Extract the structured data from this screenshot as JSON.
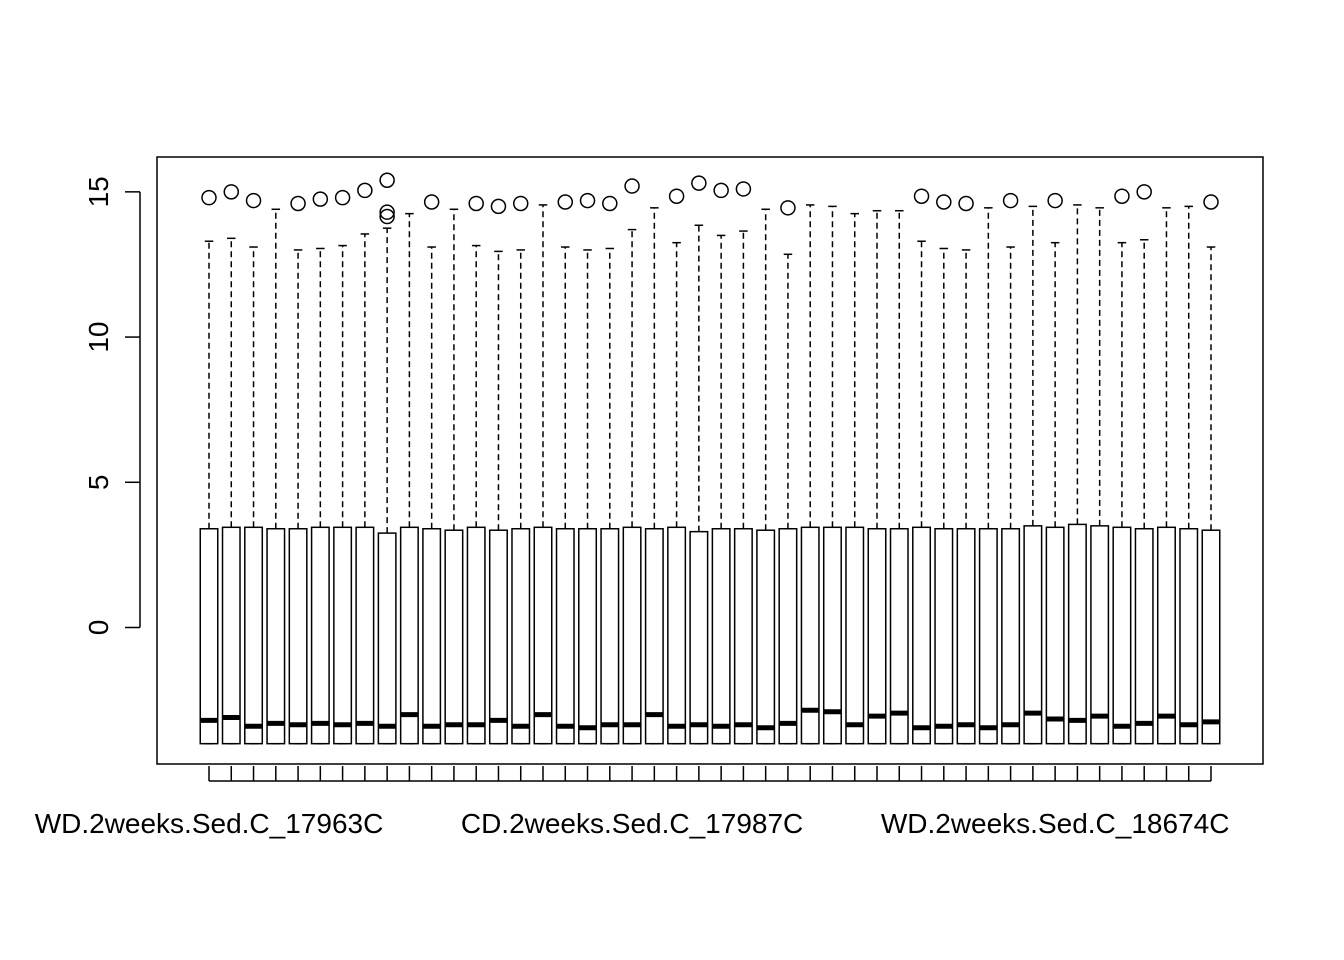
{
  "chart_data": {
    "type": "boxplot",
    "title": "",
    "xlabel": "",
    "ylabel": "",
    "ylim": [
      -4.7,
      16.2
    ],
    "y_ticks": [
      0,
      5,
      10,
      15
    ],
    "y_tick_labels": [
      "0",
      "5",
      "10",
      "15"
    ],
    "grid": false,
    "legend": "none",
    "whisker_style": "dashed",
    "x_tick_labels": [
      {
        "index": 0,
        "label": "WD.2weeks.Sed.C_17963C"
      },
      {
        "index": 19,
        "label": "CD.2weeks.Sed.C_17987C"
      },
      {
        "index": 38,
        "label": "WD.2weeks.Sed.C_18674C"
      }
    ],
    "boxes": [
      {
        "lower_whisker": -4.0,
        "q1": -4.0,
        "median": -3.2,
        "q3": 3.4,
        "upper_whisker": 13.3,
        "outliers": [
          14.8
        ]
      },
      {
        "lower_whisker": -4.0,
        "q1": -4.0,
        "median": -3.1,
        "q3": 3.45,
        "upper_whisker": 13.4,
        "outliers": [
          15.0
        ]
      },
      {
        "lower_whisker": -4.0,
        "q1": -4.0,
        "median": -3.4,
        "q3": 3.45,
        "upper_whisker": 13.1,
        "outliers": [
          14.7
        ]
      },
      {
        "lower_whisker": -4.0,
        "q1": -4.0,
        "median": -3.3,
        "q3": 3.4,
        "upper_whisker": 14.4,
        "outliers": []
      },
      {
        "lower_whisker": -4.0,
        "q1": -4.0,
        "median": -3.35,
        "q3": 3.4,
        "upper_whisker": 13.0,
        "outliers": [
          14.6
        ]
      },
      {
        "lower_whisker": -4.0,
        "q1": -4.0,
        "median": -3.3,
        "q3": 3.45,
        "upper_whisker": 13.05,
        "outliers": [
          14.75
        ]
      },
      {
        "lower_whisker": -4.0,
        "q1": -4.0,
        "median": -3.35,
        "q3": 3.45,
        "upper_whisker": 13.15,
        "outliers": [
          14.8
        ]
      },
      {
        "lower_whisker": -4.0,
        "q1": -4.0,
        "median": -3.3,
        "q3": 3.45,
        "upper_whisker": 13.55,
        "outliers": [
          15.05
        ]
      },
      {
        "lower_whisker": -4.0,
        "q1": -4.0,
        "median": -3.4,
        "q3": 3.25,
        "upper_whisker": 13.75,
        "outliers": [
          15.4,
          14.3,
          14.15
        ]
      },
      {
        "lower_whisker": -4.0,
        "q1": -4.0,
        "median": -3.0,
        "q3": 3.45,
        "upper_whisker": 14.25,
        "outliers": []
      },
      {
        "lower_whisker": -4.0,
        "q1": -4.0,
        "median": -3.4,
        "q3": 3.4,
        "upper_whisker": 13.1,
        "outliers": [
          14.65
        ]
      },
      {
        "lower_whisker": -4.0,
        "q1": -4.0,
        "median": -3.35,
        "q3": 3.35,
        "upper_whisker": 14.4,
        "outliers": []
      },
      {
        "lower_whisker": -4.0,
        "q1": -4.0,
        "median": -3.35,
        "q3": 3.45,
        "upper_whisker": 13.15,
        "outliers": [
          14.6
        ]
      },
      {
        "lower_whisker": -4.0,
        "q1": -4.0,
        "median": -3.2,
        "q3": 3.35,
        "upper_whisker": 12.95,
        "outliers": [
          14.5
        ]
      },
      {
        "lower_whisker": -4.0,
        "q1": -4.0,
        "median": -3.4,
        "q3": 3.4,
        "upper_whisker": 13.0,
        "outliers": [
          14.6
        ]
      },
      {
        "lower_whisker": -4.0,
        "q1": -4.0,
        "median": -3.0,
        "q3": 3.45,
        "upper_whisker": 14.55,
        "outliers": []
      },
      {
        "lower_whisker": -4.0,
        "q1": -4.0,
        "median": -3.4,
        "q3": 3.4,
        "upper_whisker": 13.1,
        "outliers": [
          14.65
        ]
      },
      {
        "lower_whisker": -4.0,
        "q1": -4.0,
        "median": -3.45,
        "q3": 3.4,
        "upper_whisker": 13.0,
        "outliers": [
          14.7
        ]
      },
      {
        "lower_whisker": -4.0,
        "q1": -4.0,
        "median": -3.35,
        "q3": 3.4,
        "upper_whisker": 13.05,
        "outliers": [
          14.6
        ]
      },
      {
        "lower_whisker": -4.0,
        "q1": -4.0,
        "median": -3.35,
        "q3": 3.45,
        "upper_whisker": 13.7,
        "outliers": [
          15.2
        ]
      },
      {
        "lower_whisker": -4.0,
        "q1": -4.0,
        "median": -3.0,
        "q3": 3.4,
        "upper_whisker": 14.45,
        "outliers": []
      },
      {
        "lower_whisker": -4.0,
        "q1": -4.0,
        "median": -3.4,
        "q3": 3.45,
        "upper_whisker": 13.25,
        "outliers": [
          14.85
        ]
      },
      {
        "lower_whisker": -4.0,
        "q1": -4.0,
        "median": -3.35,
        "q3": 3.3,
        "upper_whisker": 13.85,
        "outliers": [
          15.3
        ]
      },
      {
        "lower_whisker": -4.0,
        "q1": -4.0,
        "median": -3.4,
        "q3": 3.4,
        "upper_whisker": 13.5,
        "outliers": [
          15.05
        ]
      },
      {
        "lower_whisker": -4.0,
        "q1": -4.0,
        "median": -3.35,
        "q3": 3.4,
        "upper_whisker": 13.65,
        "outliers": [
          15.1
        ]
      },
      {
        "lower_whisker": -4.0,
        "q1": -4.0,
        "median": -3.45,
        "q3": 3.35,
        "upper_whisker": 14.4,
        "outliers": []
      },
      {
        "lower_whisker": -4.0,
        "q1": -4.0,
        "median": -3.3,
        "q3": 3.4,
        "upper_whisker": 12.85,
        "outliers": [
          14.45
        ]
      },
      {
        "lower_whisker": -4.0,
        "q1": -4.0,
        "median": -2.85,
        "q3": 3.45,
        "upper_whisker": 14.55,
        "outliers": []
      },
      {
        "lower_whisker": -4.0,
        "q1": -4.0,
        "median": -2.9,
        "q3": 3.45,
        "upper_whisker": 14.5,
        "outliers": []
      },
      {
        "lower_whisker": -4.0,
        "q1": -4.0,
        "median": -3.35,
        "q3": 3.45,
        "upper_whisker": 14.25,
        "outliers": []
      },
      {
        "lower_whisker": -4.0,
        "q1": -4.0,
        "median": -3.05,
        "q3": 3.4,
        "upper_whisker": 14.35,
        "outliers": []
      },
      {
        "lower_whisker": -4.0,
        "q1": -4.0,
        "median": -2.95,
        "q3": 3.4,
        "upper_whisker": 14.35,
        "outliers": []
      },
      {
        "lower_whisker": -4.0,
        "q1": -4.0,
        "median": -3.45,
        "q3": 3.45,
        "upper_whisker": 13.3,
        "outliers": [
          14.85
        ]
      },
      {
        "lower_whisker": -4.0,
        "q1": -4.0,
        "median": -3.4,
        "q3": 3.4,
        "upper_whisker": 13.05,
        "outliers": [
          14.65
        ]
      },
      {
        "lower_whisker": -4.0,
        "q1": -4.0,
        "median": -3.35,
        "q3": 3.4,
        "upper_whisker": 13.0,
        "outliers": [
          14.6
        ]
      },
      {
        "lower_whisker": -4.0,
        "q1": -4.0,
        "median": -3.45,
        "q3": 3.4,
        "upper_whisker": 14.45,
        "outliers": []
      },
      {
        "lower_whisker": -4.0,
        "q1": -4.0,
        "median": -3.35,
        "q3": 3.4,
        "upper_whisker": 13.1,
        "outliers": [
          14.7
        ]
      },
      {
        "lower_whisker": -4.0,
        "q1": -4.0,
        "median": -2.95,
        "q3": 3.5,
        "upper_whisker": 14.5,
        "outliers": []
      },
      {
        "lower_whisker": -4.0,
        "q1": -4.0,
        "median": -3.15,
        "q3": 3.45,
        "upper_whisker": 13.25,
        "outliers": [
          14.7
        ]
      },
      {
        "lower_whisker": -4.0,
        "q1": -4.0,
        "median": -3.2,
        "q3": 3.55,
        "upper_whisker": 14.55,
        "outliers": []
      },
      {
        "lower_whisker": -4.0,
        "q1": -4.0,
        "median": -3.05,
        "q3": 3.5,
        "upper_whisker": 14.45,
        "outliers": []
      },
      {
        "lower_whisker": -4.0,
        "q1": -4.0,
        "median": -3.4,
        "q3": 3.45,
        "upper_whisker": 13.25,
        "outliers": [
          14.85
        ]
      },
      {
        "lower_whisker": -4.0,
        "q1": -4.0,
        "median": -3.3,
        "q3": 3.4,
        "upper_whisker": 13.35,
        "outliers": [
          15.0
        ]
      },
      {
        "lower_whisker": -4.0,
        "q1": -4.0,
        "median": -3.05,
        "q3": 3.45,
        "upper_whisker": 14.45,
        "outliers": []
      },
      {
        "lower_whisker": -4.0,
        "q1": -4.0,
        "median": -3.35,
        "q3": 3.4,
        "upper_whisker": 14.5,
        "outliers": []
      },
      {
        "lower_whisker": -4.0,
        "q1": -4.0,
        "median": -3.25,
        "q3": 3.35,
        "upper_whisker": 13.1,
        "outliers": [
          14.65
        ]
      }
    ]
  }
}
